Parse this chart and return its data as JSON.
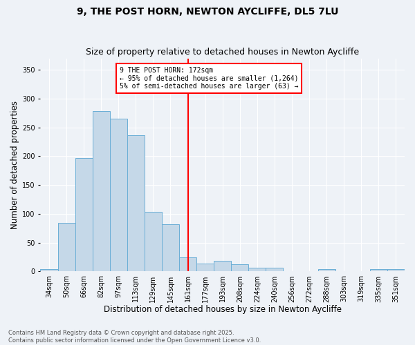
{
  "title1": "9, THE POST HORN, NEWTON AYCLIFFE, DL5 7LU",
  "title2": "Size of property relative to detached houses in Newton Aycliffe",
  "xlabel": "Distribution of detached houses by size in Newton Aycliffe",
  "ylabel": "Number of detached properties",
  "tick_labels": [
    "34sqm",
    "50sqm",
    "66sqm",
    "82sqm",
    "97sqm",
    "113sqm",
    "129sqm",
    "145sqm",
    "161sqm",
    "177sqm",
    "193sqm",
    "208sqm",
    "224sqm",
    "240sqm",
    "256sqm",
    "272sqm",
    "288sqm",
    "303sqm",
    "319sqm",
    "335sqm",
    "351sqm"
  ],
  "bin_lefts": [
    0,
    1,
    2,
    3,
    4,
    5,
    6,
    7,
    8,
    9,
    10,
    11,
    12,
    13,
    14,
    15,
    16,
    17,
    18,
    19,
    20
  ],
  "values": [
    4,
    85,
    197,
    278,
    265,
    237,
    104,
    82,
    25,
    14,
    19,
    12,
    6,
    6,
    0,
    0,
    4,
    0,
    0,
    4,
    4
  ],
  "bar_color": "#c5d8e8",
  "bar_edge_color": "#6aaed6",
  "vline_x": 8.5,
  "vline_color": "red",
  "annotation_text": "9 THE POST HORN: 172sqm\n← 95% of detached houses are smaller (1,264)\n5% of semi-detached houses are larger (63) →",
  "annotation_box_color": "white",
  "annotation_box_edge_color": "red",
  "ylim": [
    0,
    370
  ],
  "yticks": [
    0,
    50,
    100,
    150,
    200,
    250,
    300,
    350
  ],
  "footnote": "Contains HM Land Registry data © Crown copyright and database right 2025.\nContains public sector information licensed under the Open Government Licence v3.0.",
  "bg_color": "#eef2f7",
  "title_fontsize": 10,
  "subtitle_fontsize": 9,
  "xlabel_fontsize": 8.5,
  "ylabel_fontsize": 8.5,
  "tick_fontsize": 7,
  "footnote_fontsize": 6
}
